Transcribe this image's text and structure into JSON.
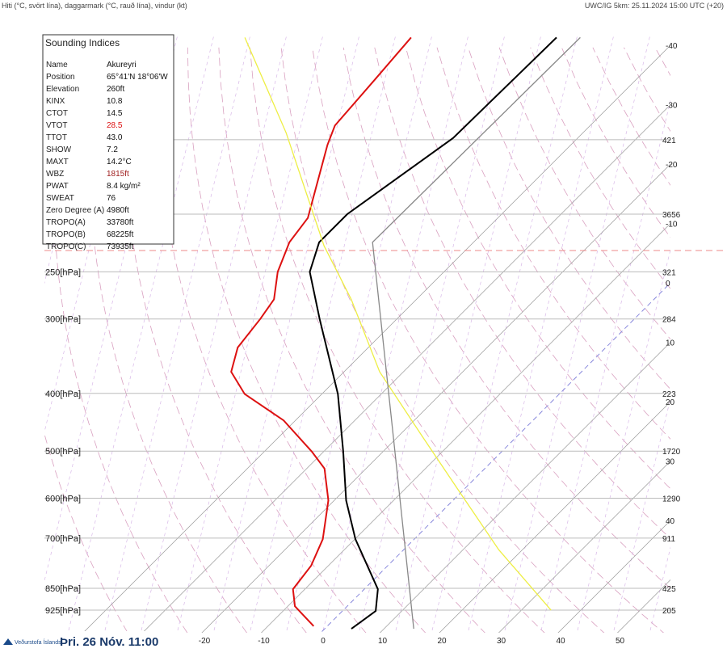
{
  "header": {
    "left": "Hiti (°C, svört lína), daggarmark (°C, rauð lína), vindur (kt)",
    "right": "UWC/IG 5km: 25.11.2024 15:00 UTC (+20)"
  },
  "indices": {
    "title": "Sounding Indices",
    "rows": [
      [
        "Name",
        "Akureyri"
      ],
      [
        "Position",
        "65°41'N 18°06'W"
      ],
      [
        "Elevation",
        "260ft"
      ],
      [
        "KINX",
        "10.8"
      ],
      [
        "CTOT",
        "14.5"
      ],
      [
        "VTOT",
        "28.5"
      ],
      [
        "TTOT",
        "43.0"
      ],
      [
        "SHOW",
        "7.2"
      ],
      [
        "MAXT",
        "14.2°C"
      ],
      [
        "WBZ",
        "1815ft"
      ],
      [
        "PWAT",
        "8.4 kg/m²"
      ],
      [
        "SWEAT",
        "76"
      ],
      [
        "Zero Degree (A)",
        "4980ft"
      ],
      [
        "TROPO(A)",
        "33780ft"
      ],
      [
        "TROPO(B)",
        "68225ft"
      ],
      [
        "TROPO(C)",
        "73935ft"
      ]
    ]
  },
  "footer": {
    "logo": "Veðurstofa Íslands",
    "time": "Þri. 26 Nóv. 11:00"
  },
  "chart_data": {
    "type": "skewt",
    "yticks": [
      {
        "value": 250,
        "label": "250[hPa]"
      },
      {
        "value": 300,
        "label": "300[hPa]"
      },
      {
        "value": 400,
        "label": "400[hPa]"
      },
      {
        "value": 500,
        "label": "500[hPa]"
      },
      {
        "value": 600,
        "label": "600[hPa]"
      },
      {
        "value": 700,
        "label": "700[hPa]"
      },
      {
        "value": 850,
        "label": "850[hPa]"
      },
      {
        "value": 925,
        "label": "925[hPa]"
      }
    ],
    "isobars": [
      150,
      200
    ],
    "height_labels": [
      {
        "value": 150,
        "label": "421"
      },
      {
        "value": 200,
        "label": "3656"
      },
      {
        "value": 250,
        "label": "321"
      },
      {
        "value": 300,
        "label": "284"
      },
      {
        "value": 400,
        "label": "223"
      },
      {
        "value": 500,
        "label": "1720"
      },
      {
        "value": 600,
        "label": "1290"
      },
      {
        "value": 700,
        "label": "911"
      },
      {
        "value": 850,
        "label": "425"
      },
      {
        "value": 925,
        "label": "205"
      }
    ],
    "xticks": [
      -40,
      -30,
      -20,
      -10,
      0,
      10,
      20,
      30,
      40,
      50
    ],
    "series": [
      {
        "color": "#000000",
        "pressure": [
          994,
          928,
          853,
          703,
          605,
          501,
          401,
          300,
          250,
          223,
          200,
          149,
          101
        ],
        "values": [
          4.5,
          5.6,
          2.3,
          -9.9,
          -18,
          -26.7,
          -37.3,
          -53,
          -62.6,
          -66,
          -66,
          -61,
          -60.5
        ]
      },
      {
        "color": "#dd1111",
        "pressure": [
          984,
          911,
          853,
          779,
          703,
          605,
          535,
          501,
          444,
          401,
          368,
          335,
          300,
          278,
          250,
          223,
          203,
          153,
          142,
          119,
          101
        ],
        "values": [
          -2.3,
          -8.8,
          -12,
          -12.9,
          -15.4,
          -21,
          -27,
          -32,
          -42,
          -53,
          -59,
          -62,
          -63,
          -64,
          -68,
          -71,
          -72,
          -81,
          -83,
          -84,
          -85
        ]
      },
      {
        "color": "#eeee44",
        "pressure": [
          925,
          732,
          588,
          472,
          368,
          278,
          226,
          146,
          101
        ],
        "values": [
          35,
          16,
          0,
          -16,
          -34,
          -51,
          -64.6,
          -90,
          -113
        ]
      },
      {
        "color": "#888888",
        "pressure": [
          994,
          501,
          223,
          101
        ],
        "values": [
          15,
          -18,
          -57,
          -56.5
        ]
      }
    ]
  }
}
